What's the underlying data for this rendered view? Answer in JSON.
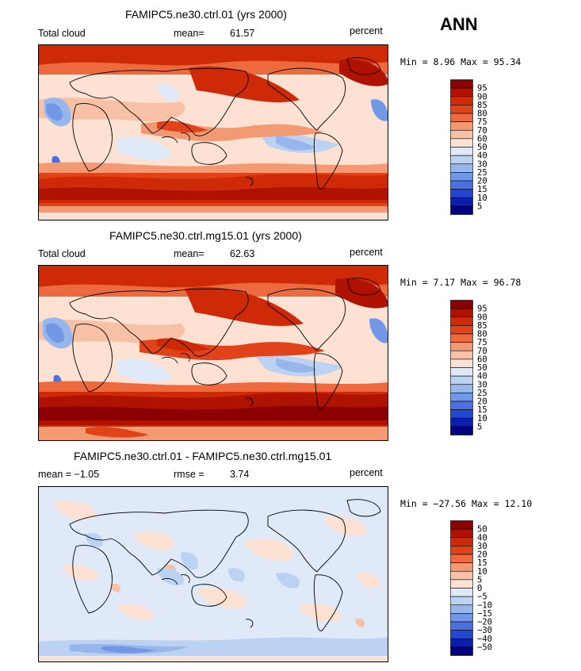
{
  "season": "ANN",
  "panels": [
    {
      "title": "FAMIPC5.ne30.ctrl.01 (yrs 2000)",
      "left_label": "Total cloud",
      "mean_label": "mean=",
      "mean_value": "61.57",
      "units": "percent",
      "minmax": "Min =    8.96 Max =   95.34"
    },
    {
      "title": "FAMIPC5.ne30.ctrl.mg15.01 (yrs 2000)",
      "left_label": "Total cloud",
      "mean_label": "mean=",
      "mean_value": "62.63",
      "units": "percent",
      "minmax": "Min =    7.17 Max =   96.78"
    },
    {
      "title": "FAMIPC5.ne30.ctrl.01 - FAMIPC5.ne30.ctrl.mg15.01",
      "left_label": "mean =  −1.05",
      "mean_label": "rmse =",
      "mean_value": "3.74",
      "units": "percent",
      "minmax": "Min = −27.56 Max =   12.10"
    }
  ],
  "chart_data": [
    {
      "type": "heatmap",
      "title": "FAMIPC5.ne30.ctrl.01 (yrs 2000)",
      "variable": "Total cloud",
      "units": "percent",
      "mean": 61.57,
      "min": 8.96,
      "max": 95.34,
      "colorbar_levels": [
        "95",
        "90",
        "85",
        "80",
        "75",
        "70",
        "60",
        "50",
        "40",
        "30",
        "25",
        "20",
        "15",
        "10",
        "5"
      ],
      "colorbar_colors": [
        "#8b0000",
        "#b01200",
        "#cf2a08",
        "#e0431a",
        "#ec6a3e",
        "#f39a73",
        "#f8c0a5",
        "#fde2d3",
        "#dfe9f8",
        "#bcd2f3",
        "#97b6ec",
        "#7197e6",
        "#4c70e0",
        "#2346d2",
        "#0b1ea8",
        "#000080"
      ]
    },
    {
      "type": "heatmap",
      "title": "FAMIPC5.ne30.ctrl.mg15.01 (yrs 2000)",
      "variable": "Total cloud",
      "units": "percent",
      "mean": 62.63,
      "min": 7.17,
      "max": 96.78,
      "colorbar_levels": [
        "95",
        "90",
        "85",
        "80",
        "75",
        "70",
        "60",
        "50",
        "40",
        "30",
        "25",
        "20",
        "15",
        "10",
        "5"
      ],
      "colorbar_colors": [
        "#8b0000",
        "#b01200",
        "#cf2a08",
        "#e0431a",
        "#ec6a3e",
        "#f39a73",
        "#f8c0a5",
        "#fde2d3",
        "#dfe9f8",
        "#bcd2f3",
        "#97b6ec",
        "#7197e6",
        "#4c70e0",
        "#2346d2",
        "#0b1ea8",
        "#000080"
      ]
    },
    {
      "type": "heatmap",
      "title": "FAMIPC5.ne30.ctrl.01 - FAMIPC5.ne30.ctrl.mg15.01",
      "units": "percent",
      "mean": -1.05,
      "rmse": 3.74,
      "min": -27.56,
      "max": 12.1,
      "colorbar_levels": [
        "50",
        "40",
        "30",
        "20",
        "15",
        "10",
        "5",
        "0",
        "−5",
        "−10",
        "−15",
        "−20",
        "−30",
        "−40",
        "−50"
      ],
      "colorbar_colors": [
        "#8b0000",
        "#b01200",
        "#cf2a08",
        "#e0431a",
        "#ec6a3e",
        "#f39a73",
        "#f8c0a5",
        "#fde2d3",
        "#dfe9f8",
        "#bcd2f3",
        "#97b6ec",
        "#7197e6",
        "#4c70e0",
        "#2346d2",
        "#0b1ea8",
        "#000080"
      ]
    }
  ]
}
